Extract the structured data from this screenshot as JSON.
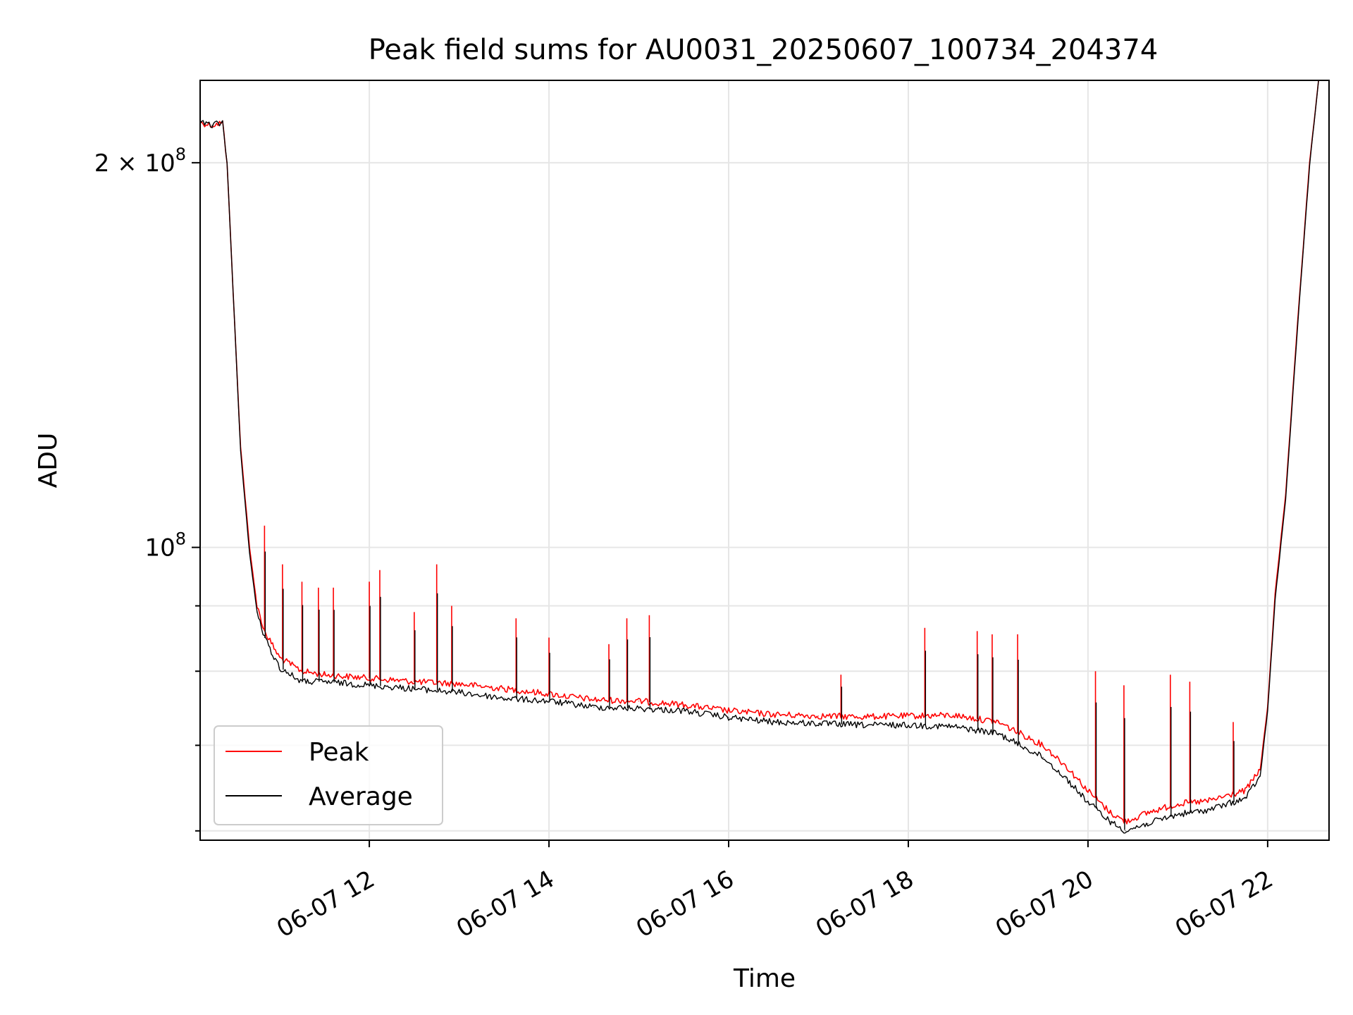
{
  "chart_data": {
    "type": "line",
    "title": "Peak field sums for AU0031_20250607_100734_204374",
    "xlabel": "Time",
    "ylabel": "ADU",
    "y_scale": "log",
    "grid": true,
    "legend_position": "lower-left",
    "xlim": [
      "2025-06-07 10:07",
      "2025-06-07 22:41"
    ],
    "ylim": [
      59000000,
      232000000
    ],
    "x_ticks": [
      {
        "value": "2025-06-07 12:00",
        "label": "06-07 12"
      },
      {
        "value": "2025-06-07 14:00",
        "label": "06-07 14"
      },
      {
        "value": "2025-06-07 16:00",
        "label": "06-07 16"
      },
      {
        "value": "2025-06-07 18:00",
        "label": "06-07 18"
      },
      {
        "value": "2025-06-07 20:00",
        "label": "06-07 20"
      },
      {
        "value": "2025-06-07 22:00",
        "label": "06-07 22"
      }
    ],
    "y_major_ticks": [
      {
        "value": 100000000,
        "label_base": "10",
        "label_exp": "8",
        "label_coef": ""
      },
      {
        "value": 200000000,
        "label_base": "10",
        "label_exp": "8",
        "label_coef": "2 × "
      }
    ],
    "y_minor_ticks": [
      60000000,
      70000000,
      80000000,
      90000000
    ],
    "series": [
      {
        "name": "Peak",
        "color": "#ff0000",
        "x": [
          "2025-06-07 10:07",
          "2025-06-07 10:15",
          "2025-06-07 10:22",
          "2025-06-07 10:25",
          "2025-06-07 10:30",
          "2025-06-07 10:34",
          "2025-06-07 10:40",
          "2025-06-07 10:45",
          "2025-06-07 10:50",
          "2025-06-07 11:00",
          "2025-06-07 11:15",
          "2025-06-07 11:30",
          "2025-06-07 12:00",
          "2025-06-07 12:30",
          "2025-06-07 13:00",
          "2025-06-07 13:30",
          "2025-06-07 14:00",
          "2025-06-07 14:30",
          "2025-06-07 15:00",
          "2025-06-07 15:30",
          "2025-06-07 16:00",
          "2025-06-07 16:30",
          "2025-06-07 17:00",
          "2025-06-07 17:30",
          "2025-06-07 18:00",
          "2025-06-07 18:30",
          "2025-06-07 19:00",
          "2025-06-07 19:30",
          "2025-06-07 19:45",
          "2025-06-07 20:00",
          "2025-06-07 20:15",
          "2025-06-07 20:25",
          "2025-06-07 20:40",
          "2025-06-07 21:00",
          "2025-06-07 21:20",
          "2025-06-07 21:45",
          "2025-06-07 21:55",
          "2025-06-07 22:00",
          "2025-06-07 22:05",
          "2025-06-07 22:12",
          "2025-06-07 22:20",
          "2025-06-07 22:28",
          "2025-06-07 22:34"
        ],
        "values": [
          215000000,
          214000000,
          215000000,
          200000000,
          150000000,
          120000000,
          100000000,
          90000000,
          86000000,
          82000000,
          80000000,
          79500000,
          79000000,
          78500000,
          78200000,
          77500000,
          76800000,
          76000000,
          75800000,
          75300000,
          74500000,
          74000000,
          73800000,
          73700000,
          73800000,
          73900000,
          73000000,
          70000000,
          67500000,
          64500000,
          62000000,
          61000000,
          62000000,
          63000000,
          63300000,
          64500000,
          67000000,
          75000000,
          92000000,
          110000000,
          150000000,
          200000000,
          232000000
        ]
      },
      {
        "name": "Average",
        "color": "#000000",
        "x": [
          "2025-06-07 10:07",
          "2025-06-07 10:15",
          "2025-06-07 10:22",
          "2025-06-07 10:25",
          "2025-06-07 10:30",
          "2025-06-07 10:34",
          "2025-06-07 10:40",
          "2025-06-07 10:45",
          "2025-06-07 10:50",
          "2025-06-07 11:00",
          "2025-06-07 11:15",
          "2025-06-07 11:30",
          "2025-06-07 12:00",
          "2025-06-07 12:30",
          "2025-06-07 13:00",
          "2025-06-07 13:30",
          "2025-06-07 14:00",
          "2025-06-07 14:30",
          "2025-06-07 15:00",
          "2025-06-07 15:30",
          "2025-06-07 16:00",
          "2025-06-07 16:30",
          "2025-06-07 17:00",
          "2025-06-07 17:30",
          "2025-06-07 18:00",
          "2025-06-07 18:30",
          "2025-06-07 19:00",
          "2025-06-07 19:30",
          "2025-06-07 19:45",
          "2025-06-07 20:00",
          "2025-06-07 20:15",
          "2025-06-07 20:25",
          "2025-06-07 20:40",
          "2025-06-07 21:00",
          "2025-06-07 21:20",
          "2025-06-07 21:45",
          "2025-06-07 21:55",
          "2025-06-07 22:00",
          "2025-06-07 22:05",
          "2025-06-07 22:12",
          "2025-06-07 22:20",
          "2025-06-07 22:28",
          "2025-06-07 22:34"
        ],
        "values": [
          215000000,
          214000000,
          215000000,
          200000000,
          150000000,
          119000000,
          99000000,
          89000000,
          85000000,
          80500000,
          78500000,
          78500000,
          78000000,
          77500000,
          77000000,
          76200000,
          75800000,
          75000000,
          74800000,
          74500000,
          73600000,
          73000000,
          72800000,
          72600000,
          72600000,
          72400000,
          71500000,
          68500000,
          66000000,
          63200000,
          61000000,
          60000000,
          60800000,
          61800000,
          62300000,
          63600000,
          66200000,
          74500000,
          91000000,
          109000000,
          149000000,
          199000000,
          232000000
        ]
      }
    ],
    "spikes": [
      {
        "series": "Peak",
        "x": "2025-06-07 10:50",
        "value": 104000000
      },
      {
        "series": "Peak",
        "x": "2025-06-07 11:02",
        "value": 97000000
      },
      {
        "series": "Peak",
        "x": "2025-06-07 11:15",
        "value": 94000000
      },
      {
        "series": "Peak",
        "x": "2025-06-07 11:26",
        "value": 93000000
      },
      {
        "series": "Peak",
        "x": "2025-06-07 11:36",
        "value": 93000000
      },
      {
        "series": "Peak",
        "x": "2025-06-07 12:00",
        "value": 94000000
      },
      {
        "series": "Peak",
        "x": "2025-06-07 12:07",
        "value": 96000000
      },
      {
        "series": "Peak",
        "x": "2025-06-07 12:30",
        "value": 89000000
      },
      {
        "series": "Peak",
        "x": "2025-06-07 12:45",
        "value": 97000000
      },
      {
        "series": "Peak",
        "x": "2025-06-07 12:55",
        "value": 90000000
      },
      {
        "series": "Peak",
        "x": "2025-06-07 13:38",
        "value": 88000000
      },
      {
        "series": "Peak",
        "x": "2025-06-07 14:00",
        "value": 85000000
      },
      {
        "series": "Peak",
        "x": "2025-06-07 14:40",
        "value": 84000000
      },
      {
        "series": "Peak",
        "x": "2025-06-07 14:52",
        "value": 88000000
      },
      {
        "series": "Peak",
        "x": "2025-06-07 15:07",
        "value": 88500000
      },
      {
        "series": "Peak",
        "x": "2025-06-07 17:15",
        "value": 79500000
      },
      {
        "series": "Peak",
        "x": "2025-06-07 18:11",
        "value": 86500000
      },
      {
        "series": "Peak",
        "x": "2025-06-07 18:46",
        "value": 86000000
      },
      {
        "series": "Peak",
        "x": "2025-06-07 18:56",
        "value": 85500000
      },
      {
        "series": "Peak",
        "x": "2025-06-07 19:13",
        "value": 85500000
      },
      {
        "series": "Peak",
        "x": "2025-06-07 20:05",
        "value": 80000000
      },
      {
        "series": "Peak",
        "x": "2025-06-07 20:24",
        "value": 78000000
      },
      {
        "series": "Peak",
        "x": "2025-06-07 20:55",
        "value": 79500000
      },
      {
        "series": "Peak",
        "x": "2025-06-07 21:08",
        "value": 78500000
      },
      {
        "series": "Peak",
        "x": "2025-06-07 21:37",
        "value": 73000000
      }
    ]
  },
  "legend": {
    "items": [
      {
        "label": "Peak",
        "color": "#ff0000"
      },
      {
        "label": "Average",
        "color": "#000000"
      }
    ]
  }
}
